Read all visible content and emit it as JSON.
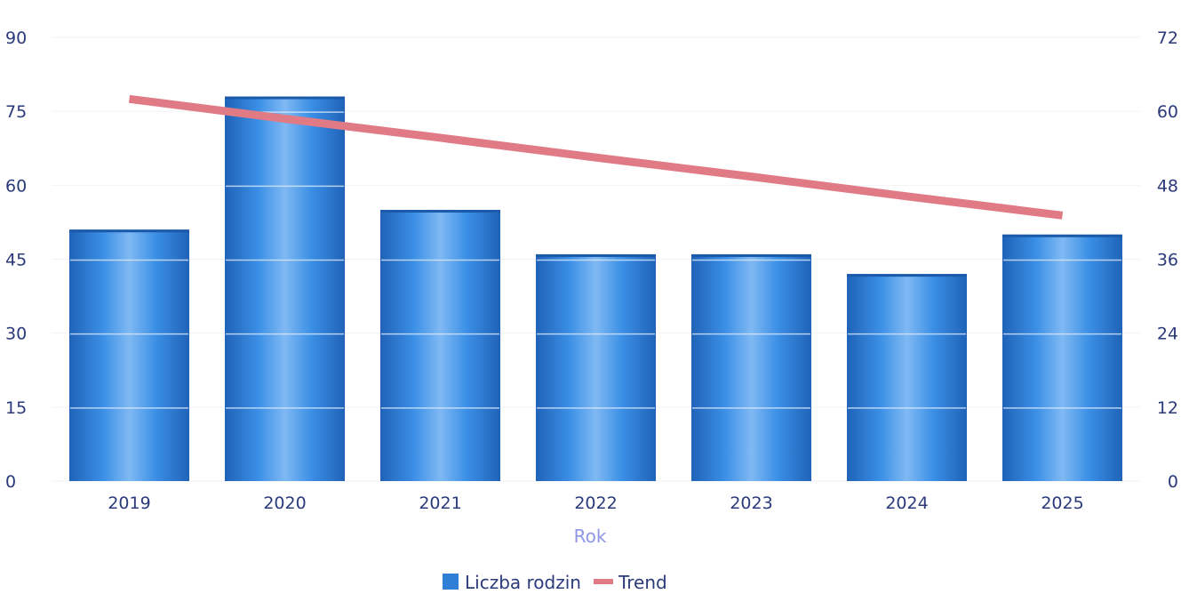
{
  "chart_data": {
    "type": "bar",
    "categories": [
      "2019",
      "2020",
      "2021",
      "2022",
      "2023",
      "2024",
      "2025"
    ],
    "series": [
      {
        "name": "Liczba rodzin",
        "type": "bar",
        "axis": "left",
        "color": "#2f7fd6",
        "values": [
          51,
          78,
          55,
          46,
          46,
          42,
          50
        ]
      },
      {
        "name": "Trend",
        "type": "line",
        "axis": "right",
        "color": "#e07a84",
        "values": [
          62,
          58.8,
          55.7,
          52.5,
          49.4,
          46.2,
          43.1
        ]
      }
    ],
    "xlabel": "Rok",
    "y_left": {
      "ylim": [
        0,
        90
      ],
      "ticks": [
        0,
        15,
        30,
        45,
        60,
        75,
        90
      ]
    },
    "y_right": {
      "ylim": [
        0,
        72
      ],
      "ticks": [
        0,
        12,
        24,
        36,
        48,
        60,
        72
      ]
    },
    "grid": true,
    "legend": "bottom-center"
  }
}
